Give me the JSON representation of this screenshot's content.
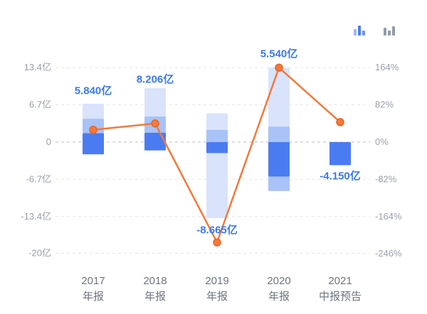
{
  "toolbar": {
    "icons": [
      {
        "name": "stacked-bar-chart",
        "color": "#4b7bf1",
        "state": "active"
      },
      {
        "name": "grouped-bar-chart",
        "color": "#939ba8",
        "state": "inactive"
      }
    ]
  },
  "chart_data": {
    "type": "bar",
    "subtype": "combo-bar-line-dual-axis",
    "title": "",
    "legend_position": "none",
    "grid": "horizontal-dashed",
    "categories": [
      [
        "2017",
        "年报"
      ],
      [
        "2018",
        "年报"
      ],
      [
        "2019",
        "年报"
      ],
      [
        "2020",
        "年报"
      ],
      [
        "2021",
        "中报预告"
      ]
    ],
    "bar_labels": [
      "5.840亿",
      "8.206亿",
      "-8.665亿",
      "5.540亿",
      "-4.150亿"
    ],
    "bar_label_values_yi": [
      5.84,
      8.206,
      -8.665,
      5.54,
      -4.15
    ],
    "label_anchors": [
      9.3,
      11.3,
      -15.8,
      15.9,
      -6.1
    ],
    "bars": [
      {
        "segments": [
          {
            "from": 4.2,
            "to": 6.9,
            "color": "pale"
          },
          {
            "from": 1.6,
            "to": 4.2,
            "color": "mid"
          },
          {
            "from": -2.2,
            "to": 1.6,
            "color": "bright"
          }
        ]
      },
      {
        "segments": [
          {
            "from": 4.6,
            "to": 9.7,
            "color": "pale"
          },
          {
            "from": 1.7,
            "to": 4.6,
            "color": "mid"
          },
          {
            "from": -1.5,
            "to": 1.7,
            "color": "bright"
          }
        ]
      },
      {
        "segments": [
          {
            "from": 2.2,
            "to": 5.2,
            "color": "pale"
          },
          {
            "from": 0,
            "to": 2.2,
            "color": "mid"
          },
          {
            "from": -2.0,
            "to": 0,
            "color": "bright"
          },
          {
            "from": -13.7,
            "to": -2.0,
            "color": "pale"
          }
        ]
      },
      {
        "segments": [
          {
            "from": 2.8,
            "to": 13.4,
            "color": "pale"
          },
          {
            "from": 0,
            "to": 2.8,
            "color": "mid"
          },
          {
            "from": -6.2,
            "to": 0,
            "color": "bright"
          },
          {
            "from": -8.8,
            "to": -6.2,
            "color": "mid"
          }
        ]
      },
      {
        "segments": [
          {
            "from": -4.15,
            "to": 0,
            "color": "bright"
          }
        ]
      }
    ],
    "line": {
      "name": "growth-rate",
      "unit": "%",
      "values": [
        27,
        41,
        -221,
        164,
        44
      ]
    },
    "axes": {
      "left": {
        "unit": "亿",
        "ticks": [
          {
            "label": "13.4亿",
            "value": 13.4
          },
          {
            "label": "6.7亿",
            "value": 6.7
          },
          {
            "label": "0",
            "value": 0
          },
          {
            "label": "-6.7亿",
            "value": -6.7
          },
          {
            "label": "-13.4亿",
            "value": -13.4
          },
          {
            "label": "-20亿",
            "value": -20
          }
        ]
      },
      "right": {
        "unit": "%",
        "ticks": [
          {
            "label": "164%",
            "value": 164
          },
          {
            "label": "82%",
            "value": 82
          },
          {
            "label": "0%",
            "value": 0
          },
          {
            "label": "-82%",
            "value": -82
          },
          {
            "label": "-164%",
            "value": -164
          },
          {
            "label": "-246%",
            "value": -246
          }
        ]
      }
    },
    "colors": {
      "pale": "#d9e3fb",
      "mid": "#a9c2f7",
      "bright": "#4b7bf1",
      "line": "#f3793c",
      "line_edge": "#ea6524",
      "label": "#3a78f2",
      "tick_text": "#99a0ab",
      "x_text": "#6e7480",
      "grid": "#e3e5ea",
      "zero_grid": "#b8bdc7"
    }
  }
}
